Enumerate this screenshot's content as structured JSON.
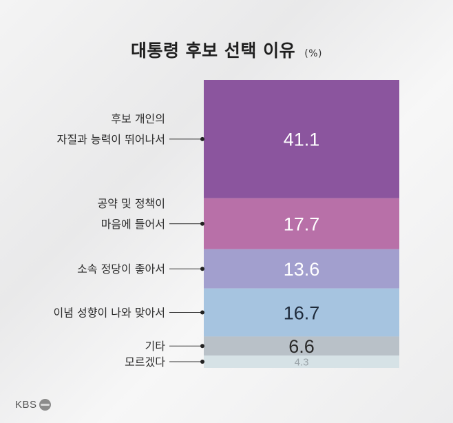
{
  "title": "대통령 후보 선택 이유",
  "unit": "(%)",
  "brand": "KBS",
  "chart_data": {
    "type": "bar",
    "orientation": "stacked-vertical",
    "title": "대통령 후보 선택 이유",
    "unit": "%",
    "segments": [
      {
        "label_lines": [
          "후보 개인의",
          "자질과 능력이 뛰어나서"
        ],
        "value": 41.1,
        "color": "#8b559e",
        "text_color": "#ffffff"
      },
      {
        "label_lines": [
          "공약 및 정책이",
          "마음에 들어서"
        ],
        "value": 17.7,
        "color": "#b870a8",
        "text_color": "#ffffff"
      },
      {
        "label_lines": [
          "소속 정당이 좋아서"
        ],
        "value": 13.6,
        "color": "#a29fce",
        "text_color": "#ffffff"
      },
      {
        "label_lines": [
          "이념 성향이 나와 맞아서"
        ],
        "value": 16.7,
        "color": "#a6c4e0",
        "text_color": "#1e2a3a"
      },
      {
        "label_lines": [
          "기타"
        ],
        "value": 6.6,
        "color": "#b9c1c8",
        "text_color": "#2a2a2a"
      },
      {
        "label_lines": [
          "모르겠다"
        ],
        "value": 4.3,
        "color": "#d6e2e6",
        "text_color": "#9aa3a8"
      }
    ]
  }
}
